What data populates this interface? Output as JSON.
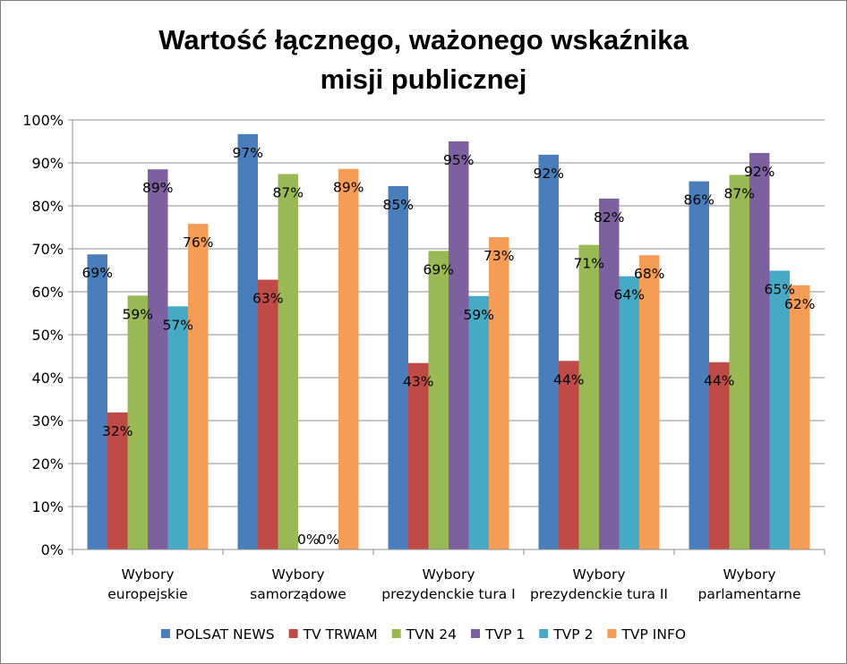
{
  "chart_data": {
    "type": "bar",
    "title_lines": [
      "Wartość łącznego, ważonego wskaźnika",
      "misji publicznej"
    ],
    "categories": [
      [
        "Wybory",
        "europejskie"
      ],
      [
        "Wybory",
        "samorządowe"
      ],
      [
        "Wybory",
        "prezydenckie tura I"
      ],
      [
        "Wybory",
        "prezydenckie tura II"
      ],
      [
        "Wybory",
        "parlamentarne"
      ]
    ],
    "ylim": [
      0,
      100
    ],
    "y_ticks": [
      0,
      10,
      20,
      30,
      40,
      50,
      60,
      70,
      80,
      90,
      100
    ],
    "y_tick_labels": [
      "0%",
      "10%",
      "20%",
      "30%",
      "40%",
      "50%",
      "60%",
      "70%",
      "80%",
      "90%",
      "100%"
    ],
    "grid": true,
    "legend_position": "bottom",
    "series": [
      {
        "name": "POLSAT NEWS",
        "color": "#4a7ebb",
        "values": [
          68.7,
          96.7,
          84.6,
          91.9,
          85.7
        ],
        "labels": [
          "69%",
          "97%",
          "85%",
          "92%",
          "86%"
        ]
      },
      {
        "name": "TV TRWAM",
        "color": "#be4b48",
        "values": [
          31.9,
          62.8,
          43.4,
          43.9,
          43.6
        ],
        "labels": [
          "32%",
          "63%",
          "43%",
          "44%",
          "44%"
        ]
      },
      {
        "name": "TVN 24",
        "color": "#98b954",
        "values": [
          59.1,
          87.4,
          69.5,
          70.9,
          87.2
        ],
        "labels": [
          "59%",
          "87%",
          "69%",
          "71%",
          "87%"
        ]
      },
      {
        "name": "TVP 1",
        "color": "#7d60a0",
        "values": [
          88.5,
          0,
          95.0,
          81.7,
          92.3
        ],
        "labels": [
          "89%",
          "0%",
          "95%",
          "82%",
          "92%"
        ]
      },
      {
        "name": "TVP 2",
        "color": "#46aac5",
        "values": [
          56.6,
          0,
          59.0,
          63.6,
          64.9
        ],
        "labels": [
          "57%",
          "0%",
          "59%",
          "64%",
          "65%"
        ]
      },
      {
        "name": "TVP INFO",
        "color": "#f59d56",
        "values": [
          75.8,
          88.6,
          72.7,
          68.5,
          61.5
        ],
        "labels": [
          "76%",
          "89%",
          "73%",
          "68%",
          "62%"
        ]
      }
    ]
  }
}
